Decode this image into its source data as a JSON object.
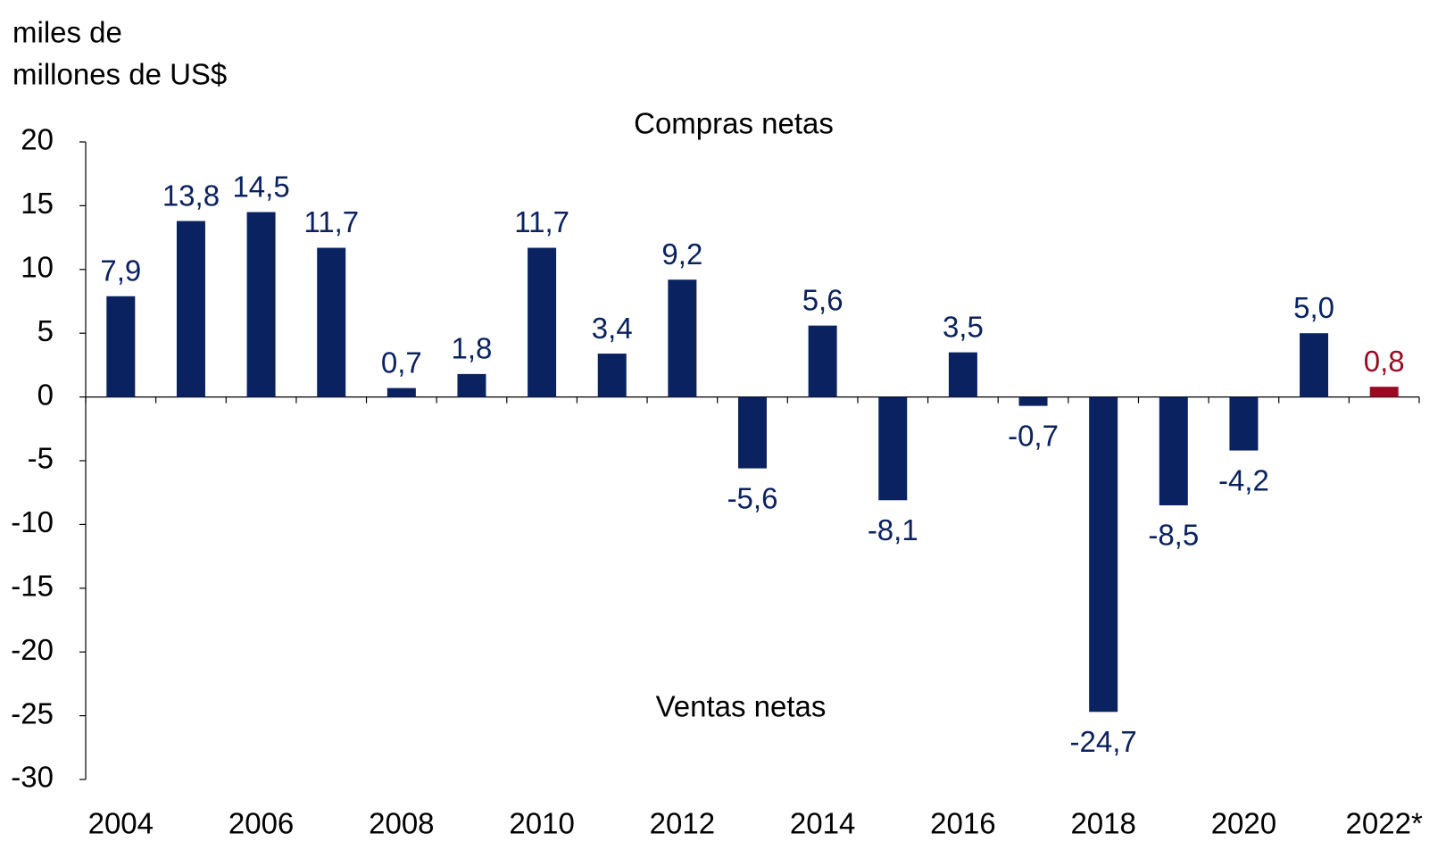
{
  "chart_data": {
    "type": "bar",
    "ylabel_lines": [
      "miles de",
      "millones de US$"
    ],
    "annotations": [
      "Compras netas",
      "Ventas netas"
    ],
    "categories": [
      "2004",
      null,
      "2006",
      null,
      "2008",
      null,
      "2010",
      null,
      "2012",
      null,
      "2014",
      null,
      "2016",
      null,
      "2018",
      null,
      "2020",
      null,
      "2022*"
    ],
    "values": [
      7.9,
      13.8,
      14.5,
      11.7,
      0.7,
      1.8,
      11.7,
      3.4,
      9.2,
      -5.6,
      5.6,
      -8.1,
      3.5,
      -0.7,
      -24.7,
      -8.5,
      -4.2,
      5.0,
      0.8
    ],
    "value_labels": [
      "7,9",
      "13,8",
      "14,5",
      "11,7",
      "0,7",
      "1,8",
      "11,7",
      "3,4",
      "9,2",
      "-5,6",
      "5,6",
      "-8,1",
      "3,5",
      "-0,7",
      "-24,7",
      "-8,5",
      "-4,2",
      "5,0",
      "0,8"
    ],
    "colors": [
      "#0b2260",
      "#0b2260",
      "#0b2260",
      "#0b2260",
      "#0b2260",
      "#0b2260",
      "#0b2260",
      "#0b2260",
      "#0b2260",
      "#0b2260",
      "#0b2260",
      "#0b2260",
      "#0b2260",
      "#0b2260",
      "#0b2260",
      "#0b2260",
      "#0b2260",
      "#0b2260",
      "#9b0a23"
    ],
    "ylim": [
      -30,
      20
    ],
    "yticks": [
      -30,
      -25,
      -20,
      -15,
      -10,
      -5,
      0,
      5,
      10,
      15,
      20
    ]
  }
}
